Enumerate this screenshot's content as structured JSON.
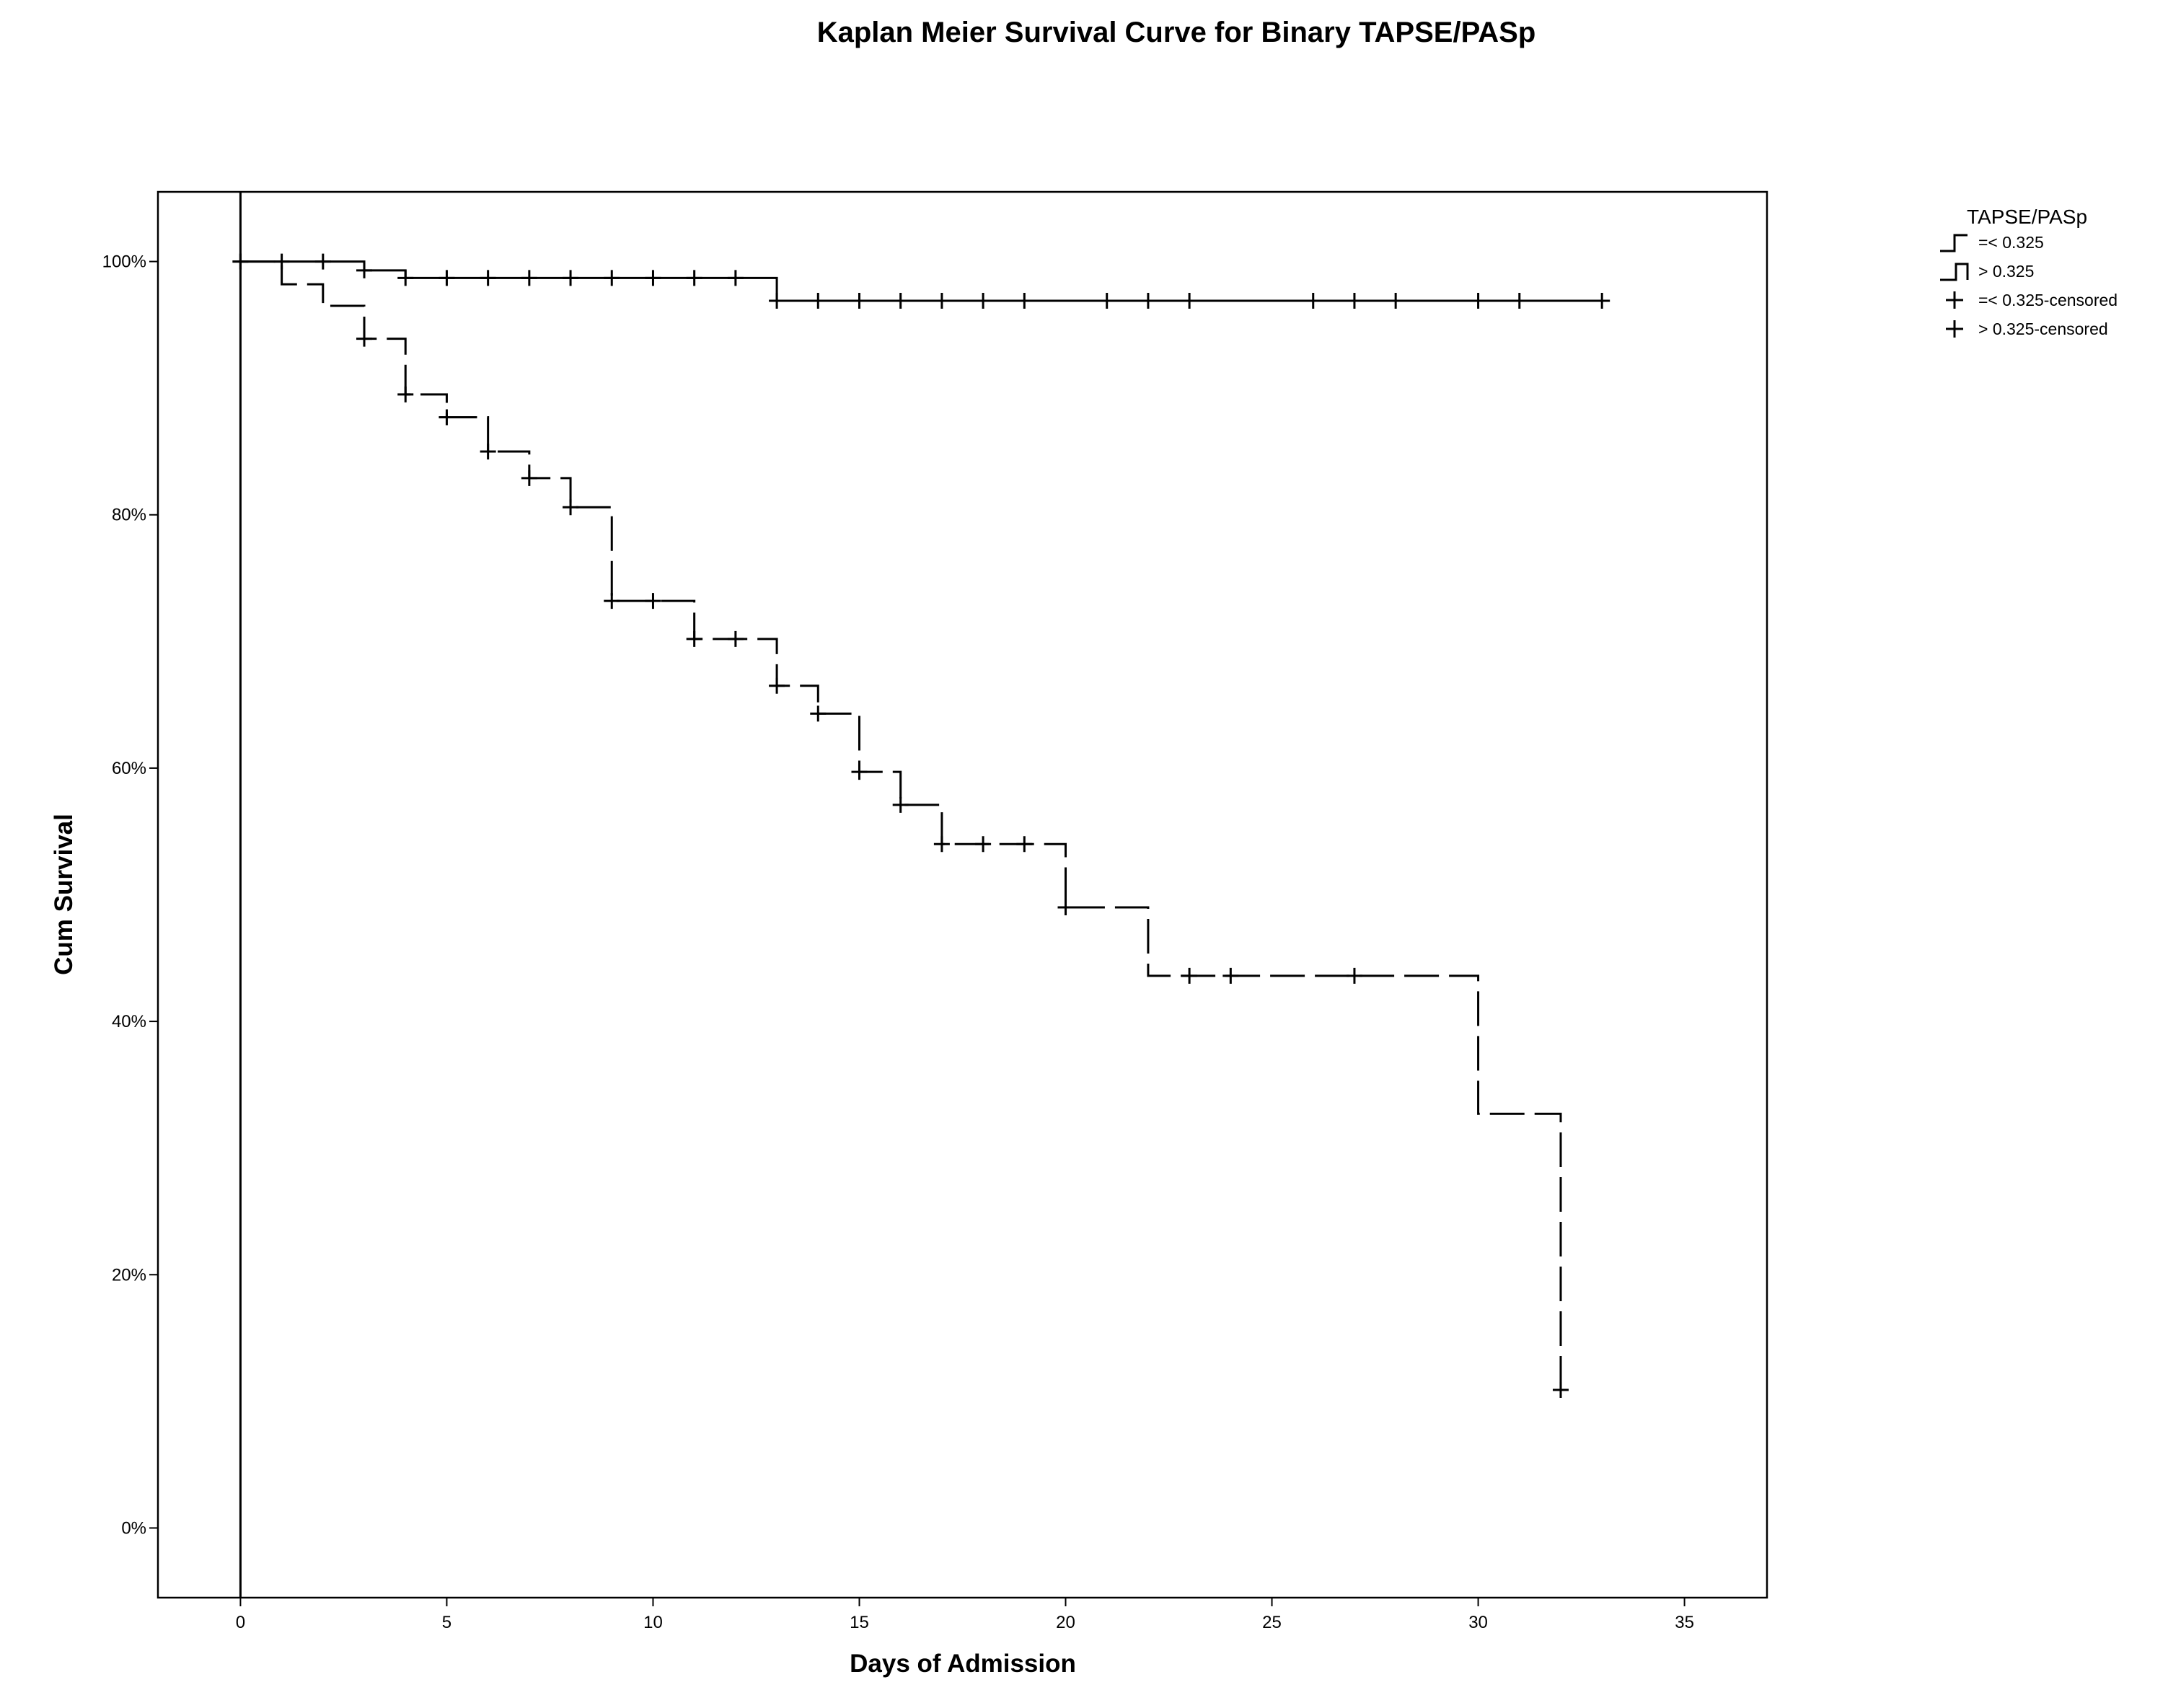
{
  "chart_data": {
    "type": "line",
    "subtype": "kaplan-meier-step",
    "title": "Kaplan Meier Survival Curve for Binary TAPSE/PASp",
    "xlabel": "Days of Admission",
    "ylabel": "Cum Survival",
    "xlim": [
      -2,
      37
    ],
    "ylim": [
      -5.5,
      105.5
    ],
    "x_ticks": [
      0,
      5,
      10,
      15,
      20,
      25,
      30,
      35
    ],
    "x_tick_labels": [
      "0",
      "5",
      "10",
      "15",
      "20",
      "25",
      "30",
      "35"
    ],
    "y_ticks": [
      0,
      20,
      40,
      60,
      80,
      100
    ],
    "y_tick_labels": [
      "0%",
      "20%",
      "40%",
      "60%",
      "80%",
      "100%"
    ],
    "grid": false,
    "reference_line_x": 0,
    "legend": {
      "title": "TAPSE/PASp",
      "placement": "right",
      "entries": [
        {
          "label": "=< 0.325",
          "symbol": "step-dashed"
        },
        {
          "label": "> 0.325",
          "symbol": "step-solid"
        },
        {
          "label": "=< 0.325-censored",
          "symbol": "plus"
        },
        {
          "label": "> 0.325-censored",
          "symbol": "plus"
        }
      ]
    },
    "series": [
      {
        "name": "=< 0.325",
        "line_style": "dashed",
        "steps": [
          [
            0,
            100
          ],
          [
            1,
            98.2
          ],
          [
            2,
            96.5
          ],
          [
            3,
            93.9
          ],
          [
            4,
            89.5
          ],
          [
            5,
            87.7
          ],
          [
            6,
            85.0
          ],
          [
            7,
            82.9
          ],
          [
            8,
            80.6
          ],
          [
            9,
            73.2
          ],
          [
            11,
            70.2
          ],
          [
            13,
            66.5
          ],
          [
            14,
            64.3
          ],
          [
            15,
            59.7
          ],
          [
            16,
            57.1
          ],
          [
            17,
            54.0
          ],
          [
            20,
            49.0
          ],
          [
            22,
            43.6
          ],
          [
            30,
            32.7
          ],
          [
            32,
            10.9
          ]
        ],
        "censored": [
          [
            0,
            100
          ],
          [
            3,
            93.9
          ],
          [
            4,
            89.5
          ],
          [
            5,
            87.7
          ],
          [
            6,
            85.0
          ],
          [
            7,
            82.9
          ],
          [
            8,
            80.6
          ],
          [
            9,
            73.2
          ],
          [
            10,
            73.2
          ],
          [
            11,
            70.2
          ],
          [
            12,
            70.2
          ],
          [
            13,
            66.5
          ],
          [
            14,
            64.3
          ],
          [
            15,
            59.7
          ],
          [
            16,
            57.1
          ],
          [
            17,
            54.0
          ],
          [
            18,
            54.0
          ],
          [
            19,
            54.0
          ],
          [
            20,
            49.0
          ],
          [
            23,
            43.6
          ],
          [
            24,
            43.6
          ],
          [
            27,
            43.6
          ],
          [
            32,
            10.9
          ]
        ]
      },
      {
        "name": "> 0.325",
        "line_style": "solid",
        "steps": [
          [
            0,
            100
          ],
          [
            3,
            99.3
          ],
          [
            4,
            98.7
          ],
          [
            13,
            96.9
          ]
        ],
        "end_x": 33,
        "censored": [
          [
            0,
            100
          ],
          [
            1,
            100
          ],
          [
            2,
            100
          ],
          [
            3,
            99.3
          ],
          [
            4,
            98.7
          ],
          [
            5,
            98.7
          ],
          [
            6,
            98.7
          ],
          [
            7,
            98.7
          ],
          [
            8,
            98.7
          ],
          [
            9,
            98.7
          ],
          [
            10,
            98.7
          ],
          [
            11,
            98.7
          ],
          [
            12,
            98.7
          ],
          [
            13,
            96.9
          ],
          [
            14,
            96.9
          ],
          [
            15,
            96.9
          ],
          [
            16,
            96.9
          ],
          [
            17,
            96.9
          ],
          [
            18,
            96.9
          ],
          [
            19,
            96.9
          ],
          [
            21,
            96.9
          ],
          [
            22,
            96.9
          ],
          [
            23,
            96.9
          ],
          [
            26,
            96.9
          ],
          [
            27,
            96.9
          ],
          [
            28,
            96.9
          ],
          [
            30,
            96.9
          ],
          [
            31,
            96.9
          ],
          [
            33,
            96.9
          ]
        ]
      }
    ]
  }
}
